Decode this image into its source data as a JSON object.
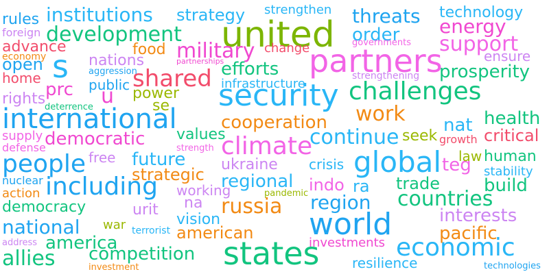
{
  "words": [
    {
      "text": "united",
      "color": "#7CB500"
    },
    {
      "text": "security",
      "color": "#29B6F6"
    },
    {
      "text": "partners",
      "color": "#F264E6"
    },
    {
      "text": "states",
      "color": "#12C47F"
    },
    {
      "text": "world",
      "color": "#1FA4F0"
    },
    {
      "text": "international",
      "color": "#1FA4F0"
    },
    {
      "text": "challenges",
      "color": "#12C47F"
    },
    {
      "text": "global",
      "color": "#29B6F6"
    },
    {
      "text": "economic",
      "color": "#29B6F6"
    },
    {
      "text": "s",
      "color": "#29B6F6"
    },
    {
      "text": "people",
      "color": "#1FA4F0"
    },
    {
      "text": "including",
      "color": "#1FA4F0"
    },
    {
      "text": "climate",
      "color": "#F264E6"
    },
    {
      "text": "shared",
      "color": "#F24C6B"
    },
    {
      "text": "military",
      "color": "#F048D0"
    },
    {
      "text": "development",
      "color": "#12C47F"
    },
    {
      "text": "work",
      "color": "#F28A14"
    },
    {
      "text": "continue",
      "color": "#29B6F6"
    },
    {
      "text": "support",
      "color": "#F264E6"
    },
    {
      "text": "russia",
      "color": "#F28A14"
    },
    {
      "text": "allies",
      "color": "#12C47F"
    },
    {
      "text": "countries",
      "color": "#12C47F"
    },
    {
      "text": "national",
      "color": "#1FA4F0"
    },
    {
      "text": "region",
      "color": "#1FA4F0"
    },
    {
      "text": "prosperity",
      "color": "#12C47F"
    },
    {
      "text": "threats",
      "color": "#1FA4F0"
    },
    {
      "text": "institutions",
      "color": "#29B6F6"
    },
    {
      "text": "energy",
      "color": "#F048D0"
    },
    {
      "text": "cooperation",
      "color": "#F28A14"
    },
    {
      "text": "democratic",
      "color": "#F048D0"
    },
    {
      "text": "america",
      "color": "#12C47F"
    },
    {
      "text": "competition",
      "color": "#12C47F"
    },
    {
      "text": "interests",
      "color": "#CC85F2"
    },
    {
      "text": "american",
      "color": "#F28A14"
    },
    {
      "text": "future",
      "color": "#29B6F6"
    },
    {
      "text": "regional",
      "color": "#29B6F6"
    },
    {
      "text": "efforts",
      "color": "#12C47F"
    },
    {
      "text": "democracy",
      "color": "#12C47F"
    },
    {
      "text": "order",
      "color": "#29B6F6"
    },
    {
      "text": "strategy",
      "color": "#29B6F6"
    },
    {
      "text": "technology",
      "color": "#29B6F6"
    },
    {
      "text": "nat",
      "color": "#29B6F6"
    },
    {
      "text": "health",
      "color": "#12C47F"
    },
    {
      "text": "u",
      "color": "#F048D0"
    },
    {
      "text": "prc",
      "color": "#F048D0"
    },
    {
      "text": "open",
      "color": "#1FA4F0"
    },
    {
      "text": "advance",
      "color": "#F24C6B"
    },
    {
      "text": "nations",
      "color": "#CC85F2"
    },
    {
      "text": "pacific",
      "color": "#F28A14"
    },
    {
      "text": "critical",
      "color": "#F24C6B"
    },
    {
      "text": "human",
      "color": "#12C47F"
    },
    {
      "text": "build",
      "color": "#12C47F"
    },
    {
      "text": "trade",
      "color": "#12C47F"
    },
    {
      "text": "vision",
      "color": "#29B6F6"
    },
    {
      "text": "strategic",
      "color": "#F28A14"
    },
    {
      "text": "ukraine",
      "color": "#CC85F2"
    },
    {
      "text": "indo",
      "color": "#F264E6"
    },
    {
      "text": "ra",
      "color": "#29B6F6"
    },
    {
      "text": "teg",
      "color": "#F264E6"
    },
    {
      "text": "power",
      "color": "#9AB800"
    },
    {
      "text": "se",
      "color": "#9AB800"
    },
    {
      "text": "food",
      "color": "#F28A14"
    },
    {
      "text": "public",
      "color": "#1FA4F0"
    },
    {
      "text": "values",
      "color": "#12C47F"
    },
    {
      "text": "urit",
      "color": "#CC85F2"
    },
    {
      "text": "na",
      "color": "#CC85F2"
    },
    {
      "text": "crisis",
      "color": "#29B6F6"
    },
    {
      "text": "seek",
      "color": "#9AB800"
    },
    {
      "text": "law",
      "color": "#9AB800"
    },
    {
      "text": "free",
      "color": "#CC85F2"
    },
    {
      "text": "rights",
      "color": "#CC85F2"
    },
    {
      "text": "working",
      "color": "#CC85F2"
    },
    {
      "text": "ensure",
      "color": "#CC85F2"
    },
    {
      "text": "change",
      "color": "#F24C6B"
    },
    {
      "text": "home",
      "color": "#F24C6B"
    },
    {
      "text": "stability",
      "color": "#29B6F6"
    },
    {
      "text": "rules",
      "color": "#1FA4F0"
    },
    {
      "text": "strengthen",
      "color": "#29B6F6"
    },
    {
      "text": "resilience",
      "color": "#29B6F6"
    },
    {
      "text": "infrastructure",
      "color": "#29B6F6"
    },
    {
      "text": "investments",
      "color": "#F048D0"
    },
    {
      "text": "action",
      "color": "#F28A14"
    },
    {
      "text": "war",
      "color": "#9AB800"
    },
    {
      "text": "supply",
      "color": "#F264E6"
    },
    {
      "text": "nuclear",
      "color": "#1FA4F0"
    },
    {
      "text": "growth",
      "color": "#F24C6B"
    },
    {
      "text": "foreign",
      "color": "#CC85F2"
    },
    {
      "text": "economy",
      "color": "#F28A14"
    },
    {
      "text": "aggression",
      "color": "#1FA4F0"
    },
    {
      "text": "partnerships",
      "color": "#F048D0"
    },
    {
      "text": "governments",
      "color": "#F264E6"
    },
    {
      "text": "strengthening",
      "color": "#CC85F2"
    },
    {
      "text": "deterrence",
      "color": "#12C47F"
    },
    {
      "text": "defense",
      "color": "#F264E6"
    },
    {
      "text": "strength",
      "color": "#F264E6"
    },
    {
      "text": "pandemic",
      "color": "#9AB800"
    },
    {
      "text": "terrorist",
      "color": "#29B6F6"
    },
    {
      "text": "address",
      "color": "#CC85F2"
    },
    {
      "text": "investment",
      "color": "#F28A14"
    },
    {
      "text": "technologies",
      "color": "#1FA4F0"
    }
  ]
}
